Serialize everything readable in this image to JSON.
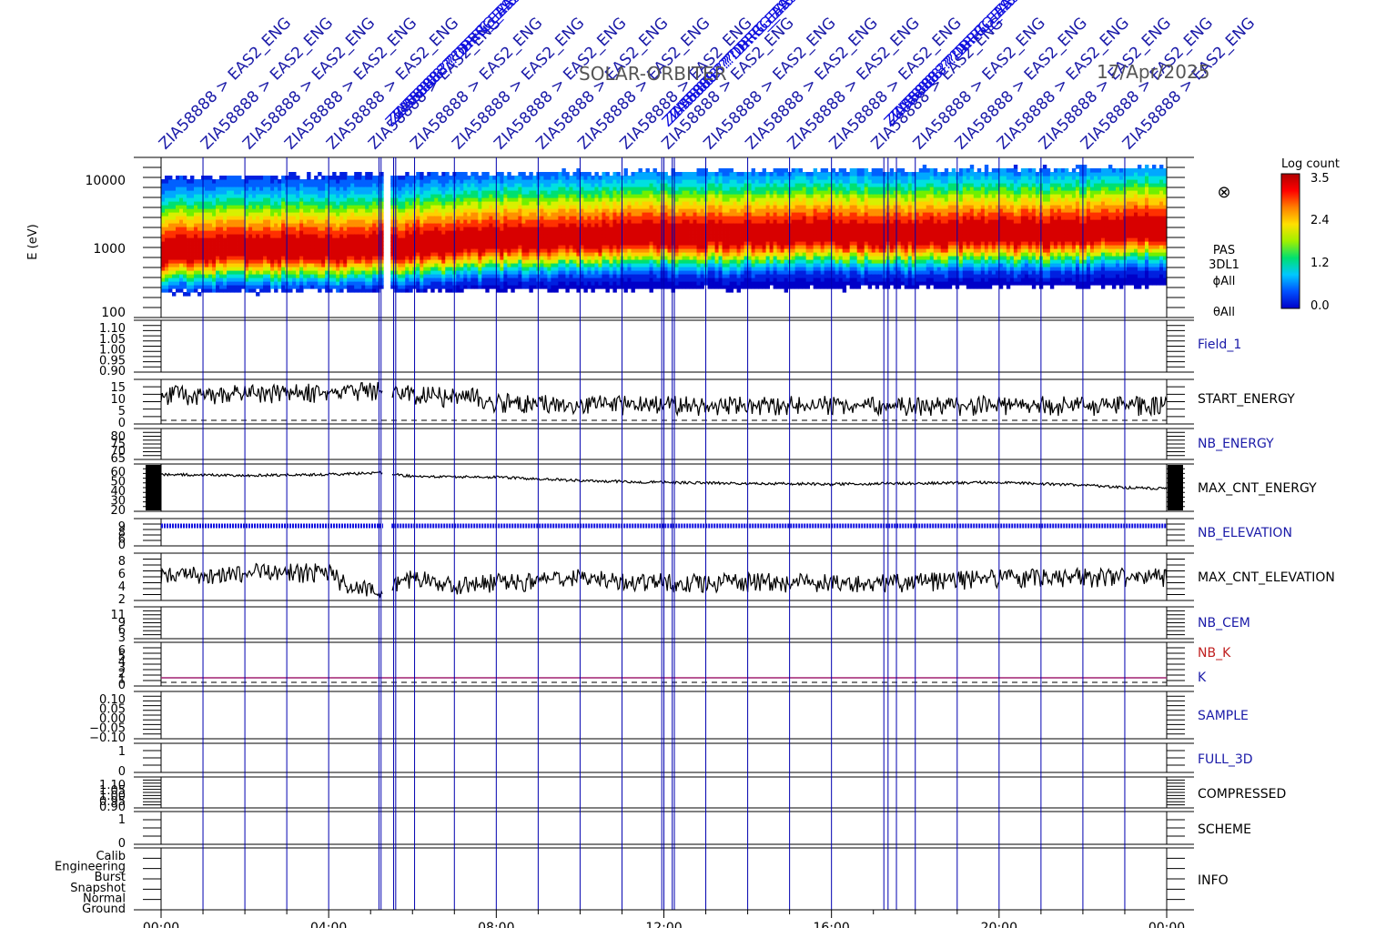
{
  "header": {
    "mission": "SOLAR-ORBITER",
    "date": "17/Apr/2025"
  },
  "colorbar": {
    "title": "Log count",
    "ticks": [
      "3.5",
      "2.4",
      "1.2",
      "0.0"
    ],
    "colors": [
      "#0000c8",
      "#0050ff",
      "#00c8ff",
      "#00e070",
      "#a0f000",
      "#ffe000",
      "#ff8000",
      "#ff0000",
      "#b00000"
    ]
  },
  "colors": {
    "frame": "#000000",
    "marker_blue": "#0000b0",
    "label_blue": "#1a1aa8",
    "label_red": "#c02020",
    "k_line": "#a02070"
  },
  "top_annotations": {
    "repeated_label": "ZIA58888 > EAS2_ENG",
    "overlap_label": "ZIA58888 ?? DRRG_EAS",
    "count_regular": 24
  },
  "panels": {
    "spectrogram": {
      "ylabel": "E (eV)",
      "ticks": [
        "10000",
        "1000",
        "100"
      ],
      "side_labels": [
        "PAS",
        "3DL1",
        "ϕAll",
        "θAll"
      ],
      "symbol": "⊗"
    },
    "field_1": {
      "label": "Field_1",
      "ticks": [
        "1.10",
        "1.05",
        "1.00",
        "0.95",
        "0.90"
      ]
    },
    "start_energy": {
      "label": "START_ENERGY",
      "ticks": [
        "15",
        "10",
        "5",
        "0"
      ]
    },
    "nb_energy": {
      "label": "NB_ENERGY",
      "ticks": [
        "80",
        "75",
        "70",
        "65"
      ]
    },
    "max_cnt_energy": {
      "label": "MAX_CNT_ENERGY",
      "ticks": [
        "60",
        "50",
        "40",
        "30",
        "20"
      ]
    },
    "nb_elevation": {
      "label": "NB_ELEVATION",
      "ticks": [
        "9",
        "8",
        "6",
        "0"
      ]
    },
    "max_cnt_elevation": {
      "label": "MAX_CNT_ELEVATION",
      "ticks": [
        "8",
        "6",
        "4",
        "2"
      ]
    },
    "nb_cem": {
      "label": "NB_CEM",
      "ticks": [
        "11",
        "9",
        "6",
        "3"
      ]
    },
    "nb_k": {
      "label": "NB_K",
      "label2": "K",
      "ticks": [
        "6",
        "5",
        "4",
        "3",
        "2",
        "1",
        "0"
      ]
    },
    "sample": {
      "label": "SAMPLE",
      "ticks": [
        "0.10",
        "0.05",
        "0.00",
        "−0.05",
        "−0.10"
      ]
    },
    "full_3d": {
      "label": "FULL_3D",
      "ticks": [
        "1",
        "0"
      ]
    },
    "compressed": {
      "label": "COMPRESSED",
      "ticks": [
        "1.10",
        "1.05",
        "1.00",
        "0.95",
        "0.90"
      ]
    },
    "scheme": {
      "label": "SCHEME",
      "ticks": [
        "1",
        "0"
      ]
    },
    "info": {
      "label": "INFO",
      "ticks": [
        "Calib",
        "Engineering",
        "Burst",
        "Snapshot",
        "Normal",
        "Ground"
      ]
    }
  },
  "chart_data": {
    "type": "line",
    "x_ticks": [
      "00:00",
      "04:00",
      "08:00",
      "12:00",
      "16:00",
      "20:00",
      "00:00"
    ],
    "x_range_hours": [
      0,
      24
    ],
    "marker_hours": [
      1.0,
      2.0,
      3.0,
      4.0,
      5.2,
      5.25,
      5.55,
      5.6,
      6.05,
      7.0,
      8.0,
      9.0,
      10.0,
      11.0,
      11.95,
      12.0,
      12.2,
      12.25,
      13.0,
      14.0,
      15.0,
      16.0,
      17.25,
      17.35,
      17.55,
      18.0,
      19.0,
      20.0,
      21.0,
      22.0,
      23.0
    ],
    "data_gap_hours": [
      5.3,
      5.5
    ],
    "spectrogram": {
      "energy_range_eV": [
        100,
        20000
      ],
      "peak_energy_eV": [
        [
          0,
          850
        ],
        [
          2,
          900
        ],
        [
          4,
          900
        ],
        [
          5.2,
          950
        ],
        [
          6,
          1000
        ],
        [
          8,
          1200
        ],
        [
          10,
          1350
        ],
        [
          12,
          1400
        ],
        [
          14,
          1450
        ],
        [
          16,
          1500
        ],
        [
          18,
          1450
        ],
        [
          20,
          1500
        ],
        [
          22,
          1550
        ],
        [
          23,
          1750
        ],
        [
          24,
          1800
        ]
      ]
    },
    "series": [
      {
        "name": "START_ENERGY",
        "points": [
          [
            0,
            12
          ],
          [
            4,
            13
          ],
          [
            5.2,
            14
          ],
          [
            6,
            12
          ],
          [
            7.5,
            11
          ],
          [
            8,
            9
          ],
          [
            12,
            8
          ],
          [
            16,
            8
          ],
          [
            20,
            8
          ],
          [
            24,
            8
          ]
        ]
      },
      {
        "name": "MAX_CNT_ENERGY",
        "points": [
          [
            0,
            55
          ],
          [
            2,
            54
          ],
          [
            4,
            55
          ],
          [
            5.2,
            57
          ],
          [
            6,
            53
          ],
          [
            8,
            52
          ],
          [
            10,
            48
          ],
          [
            12,
            46
          ],
          [
            14,
            45
          ],
          [
            16,
            44
          ],
          [
            18,
            45
          ],
          [
            20,
            46
          ],
          [
            22,
            43
          ],
          [
            23,
            40
          ],
          [
            24,
            39
          ]
        ]
      },
      {
        "name": "MAX_CNT_ELEVATION",
        "points": [
          [
            0,
            5
          ],
          [
            2,
            6
          ],
          [
            4,
            6
          ],
          [
            4.5,
            3
          ],
          [
            5.2,
            2
          ],
          [
            6,
            5
          ],
          [
            7,
            3
          ],
          [
            8,
            4
          ],
          [
            9,
            4
          ],
          [
            10,
            5
          ],
          [
            11,
            4
          ],
          [
            12,
            4
          ],
          [
            14,
            4
          ],
          [
            16,
            4
          ],
          [
            18,
            4
          ],
          [
            20,
            5
          ],
          [
            22,
            5
          ],
          [
            24,
            5
          ]
        ]
      },
      {
        "name": "NB_ELEVATION",
        "points": [
          [
            0,
            9
          ],
          [
            24,
            9
          ]
        ]
      },
      {
        "name": "K",
        "points": [
          [
            0,
            1
          ],
          [
            24,
            1
          ]
        ]
      }
    ]
  }
}
